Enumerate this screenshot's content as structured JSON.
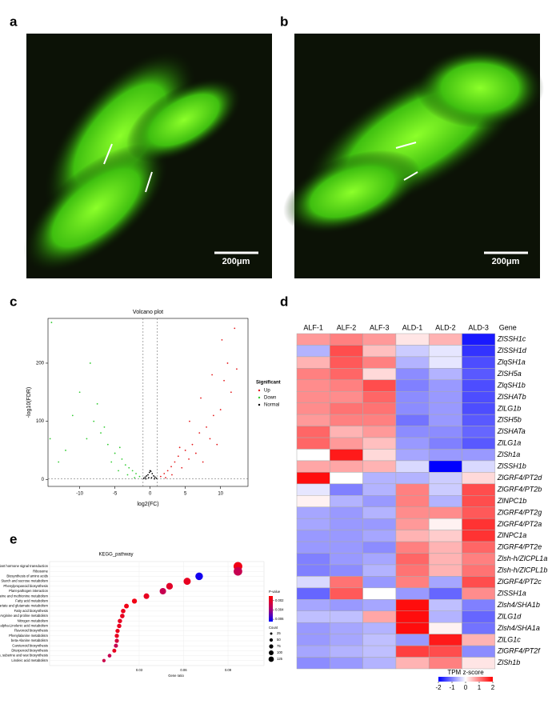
{
  "panel_labels": [
    "a",
    "b",
    "c",
    "d",
    "e"
  ],
  "images": [
    {
      "scale_bar": "200μm"
    },
    {
      "scale_bar": "200μm"
    }
  ],
  "chart_data": [
    {
      "type": "scatter",
      "title": "Volcano plot",
      "x_label": "log2(FC)",
      "y_label": "-log10(FDR)",
      "xlim": [
        -14.5,
        13.9
      ],
      "ylim": [
        -12,
        277
      ],
      "xticks": [
        -10,
        -5,
        0,
        5,
        10
      ],
      "yticks": [
        0,
        100,
        200
      ],
      "vlines": [
        -1,
        1
      ],
      "hline": 1.3,
      "legend_title": "Significant",
      "series": [
        {
          "name": "Up",
          "color": "#e41a1c",
          "x": [
            1.5,
            2,
            2.5,
            3,
            3.5,
            4,
            4.5,
            5,
            5.5,
            6,
            6.5,
            7,
            7.5,
            8,
            8.5,
            9,
            9.5,
            10,
            10.5,
            11,
            11.5,
            12,
            2.2,
            3.1,
            4.2,
            5.6,
            7.2,
            8.8,
            10.2,
            12.3
          ],
          "y": [
            5,
            10,
            15,
            22,
            30,
            40,
            20,
            50,
            35,
            60,
            45,
            80,
            30,
            90,
            70,
            110,
            60,
            120,
            170,
            200,
            150,
            260,
            3,
            8,
            55,
            100,
            140,
            180,
            240,
            190
          ]
        },
        {
          "name": "Down",
          "color": "#33cc33",
          "x": [
            -1.5,
            -2,
            -2.5,
            -3,
            -3.5,
            -4,
            -4.5,
            -5,
            -5.5,
            -6,
            -7,
            -8,
            -9,
            -10,
            -11,
            -12,
            -13,
            -14,
            -2.2,
            -3.2,
            -4.3,
            -6.5,
            -7.5,
            -8.5,
            -14.2
          ],
          "y": [
            5,
            10,
            15,
            20,
            25,
            35,
            15,
            45,
            30,
            60,
            80,
            100,
            70,
            150,
            110,
            50,
            30,
            270,
            3,
            8,
            55,
            90,
            130,
            200,
            70
          ]
        },
        {
          "name": "Normal",
          "color": "#000000",
          "x": [
            -0.9,
            -0.7,
            -0.5,
            -0.3,
            -0.1,
            0.1,
            0.3,
            0.5,
            0.7,
            0.9,
            -0.6,
            0.6,
            -0.2,
            0.2,
            0
          ],
          "y": [
            2,
            4,
            6,
            8,
            12,
            14,
            10,
            6,
            4,
            2,
            1,
            1,
            3,
            3,
            15
          ]
        }
      ]
    },
    {
      "type": "heatmap",
      "columns": [
        "ALF-1",
        "ALF-2",
        "ALF-3",
        "ALD-1",
        "ALD-2",
        "ALD-3"
      ],
      "row_header": "Gene",
      "rows": [
        "ZlSSH1c",
        "ZlSSH1d",
        "ZlqSH1a",
        "ZlSH5a",
        "ZlqSH1b",
        "ZlSHATb",
        "ZlLG1b",
        "ZlSH5b",
        "ZlSHATa",
        "ZlLG1a",
        "ZlSh1a",
        "ZlSSH1b",
        "ZlGRF4/PT2d",
        "ZlGRF4/PT2b",
        "ZlNPC1b",
        "ZlGRF4/PT2g",
        "ZlGRF4/PT2a",
        "ZlNPC1a",
        "ZlGRF4/PT2e",
        "Zlsh-h/ZlCPL1a",
        "Zlsh-h/ZlCPL1b",
        "ZlGRF4/PT2c",
        "ZlSSH1a",
        "Zlsh4/SHA1b",
        "ZlLG1d",
        "Zlsh4/SHA1a",
        "ZlLG1c",
        "ZlGRF4/PT2f",
        "ZlSh1b"
      ],
      "values": [
        [
          0.8,
          1.0,
          0.8,
          0.2,
          0.6,
          -1.8
        ],
        [
          -0.6,
          1.4,
          0.5,
          -0.4,
          -0.2,
          -1.6
        ],
        [
          0.6,
          1.3,
          1.0,
          -0.6,
          -0.2,
          -1.4
        ],
        [
          1.0,
          1.2,
          0.3,
          -0.9,
          -0.6,
          -1.3
        ],
        [
          0.9,
          1.0,
          1.4,
          -1.0,
          -0.8,
          -1.4
        ],
        [
          0.9,
          0.9,
          1.2,
          -0.9,
          -0.8,
          -1.4
        ],
        [
          0.9,
          1.1,
          1.1,
          -0.9,
          -0.8,
          -1.4
        ],
        [
          0.8,
          1.0,
          1.0,
          -1.1,
          -0.8,
          -1.3
        ],
        [
          1.2,
          0.6,
          0.8,
          -0.9,
          -0.9,
          -1.2
        ],
        [
          1.2,
          0.8,
          0.5,
          -0.8,
          -1.0,
          -1.3
        ],
        [
          0.0,
          1.8,
          0.3,
          -0.7,
          -0.8,
          -0.8
        ],
        [
          0.7,
          0.7,
          0.6,
          -0.3,
          -2.0,
          -0.3
        ],
        [
          1.9,
          0.0,
          -0.6,
          -0.6,
          -0.4,
          0.3
        ],
        [
          -0.2,
          -1.0,
          -0.6,
          1.0,
          -0.4,
          1.4
        ],
        [
          0.1,
          -0.6,
          -0.8,
          1.0,
          -0.6,
          1.4
        ],
        [
          -0.7,
          -0.8,
          -0.6,
          0.9,
          0.9,
          1.3
        ],
        [
          -0.7,
          -0.8,
          -0.8,
          0.8,
          0.1,
          1.6
        ],
        [
          -0.8,
          -0.8,
          -0.7,
          0.6,
          0.4,
          1.6
        ],
        [
          -0.8,
          -0.8,
          -0.9,
          1.0,
          0.6,
          1.2
        ],
        [
          -1.0,
          -0.8,
          -0.7,
          1.2,
          0.6,
          1.0
        ],
        [
          -1.0,
          -0.9,
          -0.6,
          1.1,
          0.6,
          1.1
        ],
        [
          -0.3,
          1.1,
          -0.8,
          1.0,
          -0.7,
          1.4
        ],
        [
          -1.2,
          1.3,
          0.0,
          -0.8,
          -1.2,
          0.9
        ],
        [
          -0.7,
          -0.8,
          -0.7,
          1.9,
          -0.5,
          -1.0
        ],
        [
          -0.5,
          -0.5,
          0.7,
          1.9,
          -0.6,
          -1.2
        ],
        [
          -0.8,
          -0.7,
          -0.6,
          1.9,
          0.1,
          -1.1
        ],
        [
          -0.8,
          -0.7,
          -0.5,
          -0.8,
          1.8,
          0.6
        ],
        [
          -0.7,
          -0.6,
          -0.5,
          1.5,
          1.4,
          -0.9
        ],
        [
          -0.9,
          -0.8,
          -0.6,
          0.6,
          1.0,
          0.2
        ]
      ],
      "colorbar_title": "TPM z-score",
      "clim": [
        -2,
        2
      ],
      "cticks": [
        -2,
        -1,
        0,
        1,
        2
      ],
      "colors": [
        "#0000ff",
        "#ffffff",
        "#ff0000"
      ]
    },
    {
      "type": "dot",
      "title": "KEGG_pathway",
      "x_label": "Gene ratio",
      "categories": [
        "Plant hormone signal transduction",
        "Ribosome",
        "Biosynthesis of amino acids",
        "Starch and sucrose metabolism",
        "Phenylpropanoid biosynthesis",
        "Plant-pathogen interaction",
        "Cysteine and methionine metabolism",
        "Fatty acid metabolism",
        "Alanine, aspartate and glutamate metabolism",
        "Fatty acid biosynthesis",
        "Arginine and proline metabolism",
        "Nitrogen metabolism",
        "alpha-Linolenic acid metabolism",
        "Flavonoid biosynthesis",
        "Phenylalanine metabolism",
        "beta-Alanine metabolism",
        "Carotenoid biosynthesis",
        "Diterpenoid biosynthesis",
        "Cutin, suberine and wax biosynthesis",
        "Linoleic acid metabolism"
      ],
      "x": [
        0.0967,
        0.0967,
        0.0705,
        0.0624,
        0.0505,
        0.046,
        0.0349,
        0.0268,
        0.0214,
        0.0192,
        0.0186,
        0.017,
        0.0165,
        0.0154,
        0.0149,
        0.0149,
        0.0143,
        0.0132,
        0.01,
        0.0062
      ],
      "pvalue": [
        0.0015,
        0.003,
        0.0062,
        0.0018,
        0.002,
        0.003,
        0.0018,
        0.0015,
        0.0015,
        0.0017,
        0.0018,
        0.0018,
        0.0018,
        0.0017,
        0.0018,
        0.0025,
        0.003,
        0.0018,
        0.003,
        0.0028
      ],
      "count": [
        120,
        115,
        90,
        80,
        70,
        65,
        50,
        40,
        35,
        32,
        32,
        30,
        30,
        28,
        28,
        27,
        26,
        25,
        22,
        18
      ],
      "xlim": [
        -0.0305,
        0.1143
      ],
      "xticks": [
        0.03,
        0.06,
        0.09
      ],
      "color_title": "P-value",
      "clim": [
        0.001,
        0.0065
      ],
      "cticks": [
        0.002,
        0.004,
        0.006
      ],
      "colors": [
        "#ff0000",
        "#b0006e",
        "#0000ff"
      ],
      "size_title": "Count",
      "size_ticks": [
        25,
        50,
        75,
        100,
        125
      ]
    }
  ]
}
